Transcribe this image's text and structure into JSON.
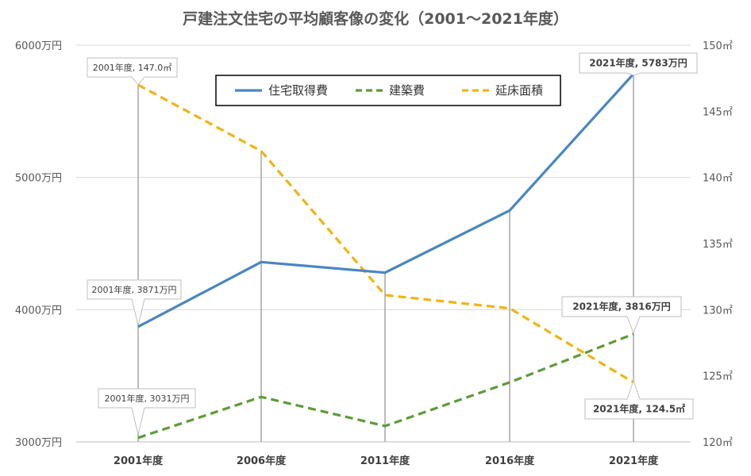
{
  "chart_data": {
    "type": "line",
    "title": "戸建注文住宅の平均顧客像の変化（2001～2021年度）",
    "categories": [
      "2001年度",
      "2006年度",
      "2011年度",
      "2016年度",
      "2021年度"
    ],
    "y_left": {
      "ticks": [
        "6000万円",
        "5000万円",
        "4000万円",
        "3000万円"
      ],
      "range": [
        3000,
        6000
      ]
    },
    "y_right": {
      "ticks": [
        "150㎡",
        "145㎡",
        "140㎡",
        "135㎡",
        "130㎡",
        "125㎡",
        "120㎡"
      ],
      "range": [
        120,
        150
      ]
    },
    "series": [
      {
        "name": "住宅取得費",
        "axis": "left",
        "style": "solid",
        "color": "#4A86C0",
        "values": [
          3871,
          4360,
          4280,
          4750,
          5783
        ]
      },
      {
        "name": "建築費",
        "axis": "left",
        "style": "dashed",
        "color": "#5E9A3A",
        "values": [
          3031,
          3340,
          3120,
          3450,
          3816
        ]
      },
      {
        "name": "延床面積",
        "axis": "right",
        "style": "dashed",
        "color": "#F0B414",
        "values": [
          147.0,
          142.0,
          131.1,
          130.1,
          124.5
        ]
      }
    ],
    "legend_position": "top",
    "annotations": [
      {
        "text": "2001年度, 147.0㎡",
        "series": 2,
        "index": 0,
        "bold": false
      },
      {
        "text": "2001年度, 3871万円",
        "series": 0,
        "index": 0,
        "bold": false
      },
      {
        "text": "2001年度, 3031万円",
        "series": 1,
        "index": 0,
        "bold": false
      },
      {
        "text": "2021年度, 5783万円",
        "series": 0,
        "index": 4,
        "bold": true
      },
      {
        "text": "2021年度, 3816万円",
        "series": 1,
        "index": 4,
        "bold": true
      },
      {
        "text": "2021年度, 124.5㎡",
        "series": 2,
        "index": 4,
        "bold": true
      }
    ]
  }
}
